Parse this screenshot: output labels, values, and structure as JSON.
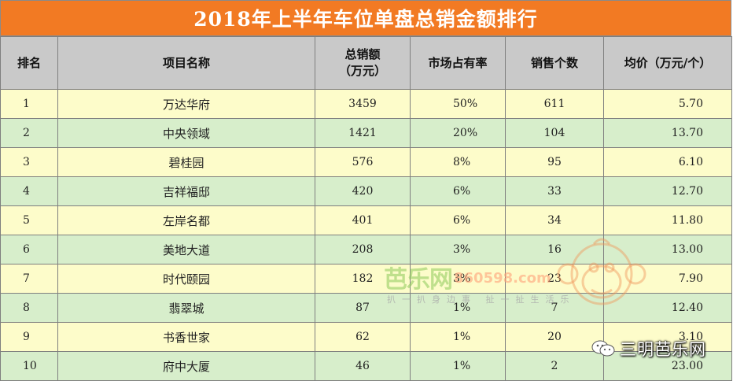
{
  "title": "2018年上半年车位单盘总销金额排行",
  "headers": {
    "rank": "排名",
    "project": "项目名称",
    "total_sales_line1": "总销额",
    "total_sales_line2": "（万元）",
    "market_share": "市场占有率",
    "units_sold": "销售个数",
    "avg_price": "均价（万元/个）"
  },
  "rows": [
    {
      "rank": "1",
      "project": "万达华府",
      "total_sales": "3459",
      "market_share": "50%",
      "units_sold": "611",
      "avg_price": "5.70"
    },
    {
      "rank": "2",
      "project": "中央领域",
      "total_sales": "1421",
      "market_share": "20%",
      "units_sold": "104",
      "avg_price": "13.70"
    },
    {
      "rank": "3",
      "project": "碧桂园",
      "total_sales": "576",
      "market_share": "8%",
      "units_sold": "95",
      "avg_price": "6.10"
    },
    {
      "rank": "4",
      "project": "吉祥福邸",
      "total_sales": "420",
      "market_share": "6%",
      "units_sold": "33",
      "avg_price": "12.70"
    },
    {
      "rank": "5",
      "project": "左岸名都",
      "total_sales": "401",
      "market_share": "6%",
      "units_sold": "34",
      "avg_price": "11.80"
    },
    {
      "rank": "6",
      "project": "美地大道",
      "total_sales": "208",
      "market_share": "3%",
      "units_sold": "16",
      "avg_price": "13.00"
    },
    {
      "rank": "7",
      "project": "时代颐园",
      "total_sales": "182",
      "market_share": "3%",
      "units_sold": "23",
      "avg_price": "7.90"
    },
    {
      "rank": "8",
      "project": "翡翠城",
      "total_sales": "87",
      "market_share": "1%",
      "units_sold": "7",
      "avg_price": "12.40"
    },
    {
      "rank": "9",
      "project": "书香世家",
      "total_sales": "62",
      "market_share": "1%",
      "units_sold": "20",
      "avg_price": "3.10"
    },
    {
      "rank": "10",
      "project": "府中大厦",
      "total_sales": "46",
      "market_share": "1%",
      "units_sold": "2",
      "avg_price": "23.00"
    }
  ],
  "watermark": {
    "site_name": "芭乐网",
    "url": "860598.com",
    "slogan": "扒一扒身边事 扯一扯生活乐"
  },
  "brand": {
    "name": "三明芭乐网",
    "icon": "wechat-icon"
  },
  "colors": {
    "title_bg": "#f27a23",
    "header_bg": "#c9c9c9",
    "odd_row_bg": "#fdfcca",
    "even_row_bg": "#d7eecb"
  }
}
